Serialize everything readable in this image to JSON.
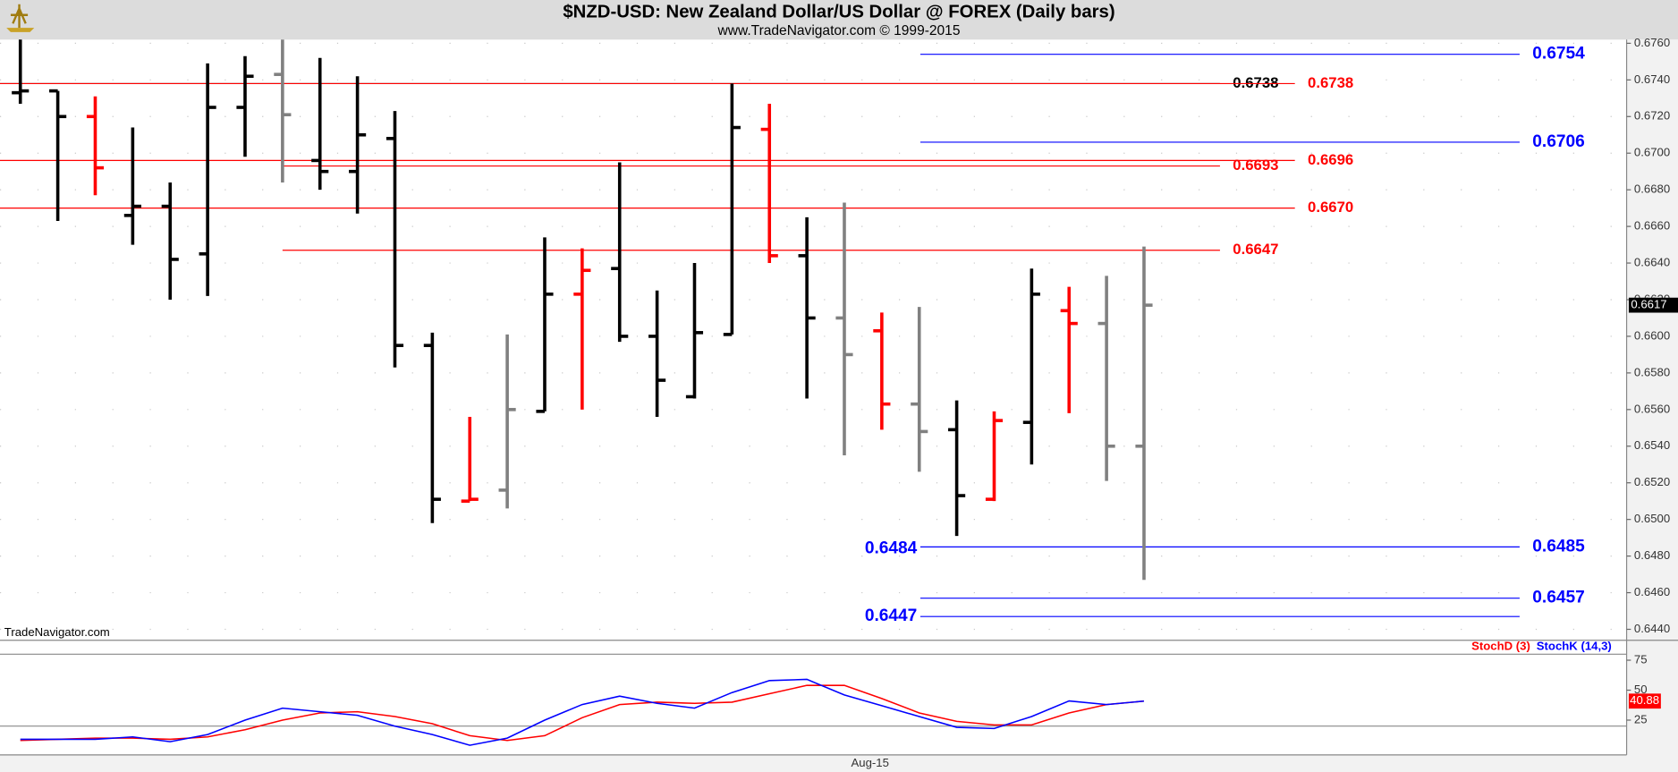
{
  "chart_data": [
    {
      "type": "ohlc",
      "title": "$NZD-USD:  New Zealand Dollar/US Dollar @ FOREX  (Daily bars)",
      "subtitle": "www.TradeNavigator.com © 1999-2015",
      "watermark": "TradeNavigator.com",
      "categories": [
        null,
        null,
        null,
        null,
        null,
        null,
        null,
        null,
        null,
        null,
        null,
        null,
        null,
        null,
        null,
        null,
        null,
        null,
        null,
        null,
        null,
        null,
        null,
        "Aug-15",
        null,
        null,
        null,
        null,
        null,
        null,
        null
      ],
      "open": [
        0.6733,
        0.6734,
        0.672,
        0.6666,
        0.6671,
        0.6645,
        0.6725,
        0.6743,
        0.6696,
        0.669,
        0.6708,
        0.6595,
        0.651,
        0.6516,
        0.6559,
        0.6623,
        0.6637,
        0.66,
        0.6567,
        0.6601,
        0.6713,
        0.6644,
        0.661,
        0.6603,
        0.6563,
        0.6549,
        0.6511,
        0.6553,
        0.6614,
        0.6607,
        0.654
      ],
      "high": [
        0.6762,
        0.6734,
        0.6731,
        0.6714,
        0.6684,
        0.6749,
        0.6753,
        0.6762,
        0.6752,
        0.6742,
        0.6723,
        0.6602,
        0.6556,
        0.6601,
        0.6654,
        0.6648,
        0.6695,
        0.6625,
        0.664,
        0.6738,
        0.6727,
        0.6665,
        0.6673,
        0.6613,
        0.6616,
        0.6565,
        0.6559,
        0.6637,
        0.6627,
        0.6633,
        0.6649
      ],
      "low": [
        0.6727,
        0.6663,
        0.6677,
        0.665,
        0.662,
        0.6622,
        0.6698,
        0.6684,
        0.668,
        0.6667,
        0.6583,
        0.6498,
        0.651,
        0.6506,
        0.6559,
        0.656,
        0.6597,
        0.6556,
        0.6566,
        0.6601,
        0.664,
        0.6566,
        0.6535,
        0.6549,
        0.6526,
        0.6491,
        0.651,
        0.653,
        0.6558,
        0.6521,
        0.6467
      ],
      "close": [
        0.6734,
        0.672,
        0.6692,
        0.6671,
        0.6642,
        0.6725,
        0.6742,
        0.6721,
        0.669,
        0.671,
        0.6595,
        0.6511,
        0.6511,
        0.656,
        0.6623,
        0.6636,
        0.66,
        0.6576,
        0.6602,
        0.6714,
        0.6644,
        0.661,
        0.659,
        0.6563,
        0.6548,
        0.6513,
        0.6554,
        0.6623,
        0.6607,
        0.654,
        0.6617
      ],
      "colors": [
        "#000000",
        "#000000",
        "#ff0000",
        "#000000",
        "#000000",
        "#000000",
        "#000000",
        "#808080",
        "#000000",
        "#000000",
        "#000000",
        "#000000",
        "#ff0000",
        "#808080",
        "#000000",
        "#ff0000",
        "#000000",
        "#000000",
        "#000000",
        "#000000",
        "#ff0000",
        "#000000",
        "#808080",
        "#ff0000",
        "#808080",
        "#000000",
        "#ff0000",
        "#000000",
        "#ff0000",
        "#808080",
        "#808080"
      ],
      "ylim": [
        0.6434,
        0.6762
      ],
      "yticks": [
        {
          "value": 0.644,
          "label": "0.6440"
        },
        {
          "value": 0.646,
          "label": "0.6460"
        },
        {
          "value": 0.648,
          "label": "0.6480"
        },
        {
          "value": 0.65,
          "label": "0.6500"
        },
        {
          "value": 0.652,
          "label": "0.6520"
        },
        {
          "value": 0.654,
          "label": "0.6540"
        },
        {
          "value": 0.656,
          "label": "0.6560"
        },
        {
          "value": 0.658,
          "label": "0.6580"
        },
        {
          "value": 0.66,
          "label": "0.6600"
        },
        {
          "value": 0.662,
          "label": "0.6620"
        },
        {
          "value": 0.664,
          "label": "0.6640"
        },
        {
          "value": 0.666,
          "label": "0.6660"
        },
        {
          "value": 0.668,
          "label": "0.6680"
        },
        {
          "value": 0.67,
          "label": "0.6700"
        },
        {
          "value": 0.672,
          "label": "0.6720"
        },
        {
          "value": 0.674,
          "label": "0.6740"
        },
        {
          "value": 0.676,
          "label": "0.6760"
        }
      ],
      "levels": [
        {
          "value": 0.6754,
          "color": "#0000ff"
        },
        {
          "value": 0.6738,
          "color": "#000000"
        },
        {
          "value": 0.6738,
          "color": "#ff0000"
        },
        {
          "value": 0.6706,
          "color": "#0000ff"
        },
        {
          "value": 0.6696,
          "color": "#ff0000"
        },
        {
          "value": 0.6693,
          "color": "#ff0000"
        },
        {
          "value": 0.667,
          "label": "0.6670",
          "color": "#ff0000"
        },
        {
          "value": 0.6647,
          "color": "#ff0000"
        },
        {
          "value": 0.6485,
          "color": "#0000ff"
        },
        {
          "value": 0.6484,
          "color": "#0000ff"
        },
        {
          "value": 0.6457,
          "color": "#0000ff"
        },
        {
          "value": 0.6447,
          "color": "#0000ff"
        }
      ],
      "last_value": 0.6617,
      "grid": true
    },
    {
      "type": "line",
      "series": [
        {
          "name": "StochD (3)",
          "color": "#ff0000",
          "values": [
            8,
            9,
            10,
            10,
            9,
            11,
            17,
            25,
            31,
            32,
            28,
            22,
            12,
            8,
            12,
            27,
            38,
            40,
            39,
            40,
            47,
            54,
            54,
            43,
            31,
            24,
            21,
            21,
            31,
            38,
            40.88
          ]
        },
        {
          "name": "StochK (14,3)",
          "color": "#0000ff",
          "values": [
            9,
            9,
            9,
            11,
            7,
            13,
            25,
            35,
            32,
            29,
            20,
            13,
            4,
            10,
            25,
            38,
            45,
            39,
            35,
            48,
            58,
            59,
            46,
            37,
            28,
            19,
            18,
            28,
            41,
            38,
            40.88
          ]
        }
      ],
      "last_value": 40.88,
      "ylim": [
        -4,
        80
      ],
      "yticks": [
        75,
        50,
        25
      ],
      "ref_lines": [
        20
      ]
    }
  ]
}
